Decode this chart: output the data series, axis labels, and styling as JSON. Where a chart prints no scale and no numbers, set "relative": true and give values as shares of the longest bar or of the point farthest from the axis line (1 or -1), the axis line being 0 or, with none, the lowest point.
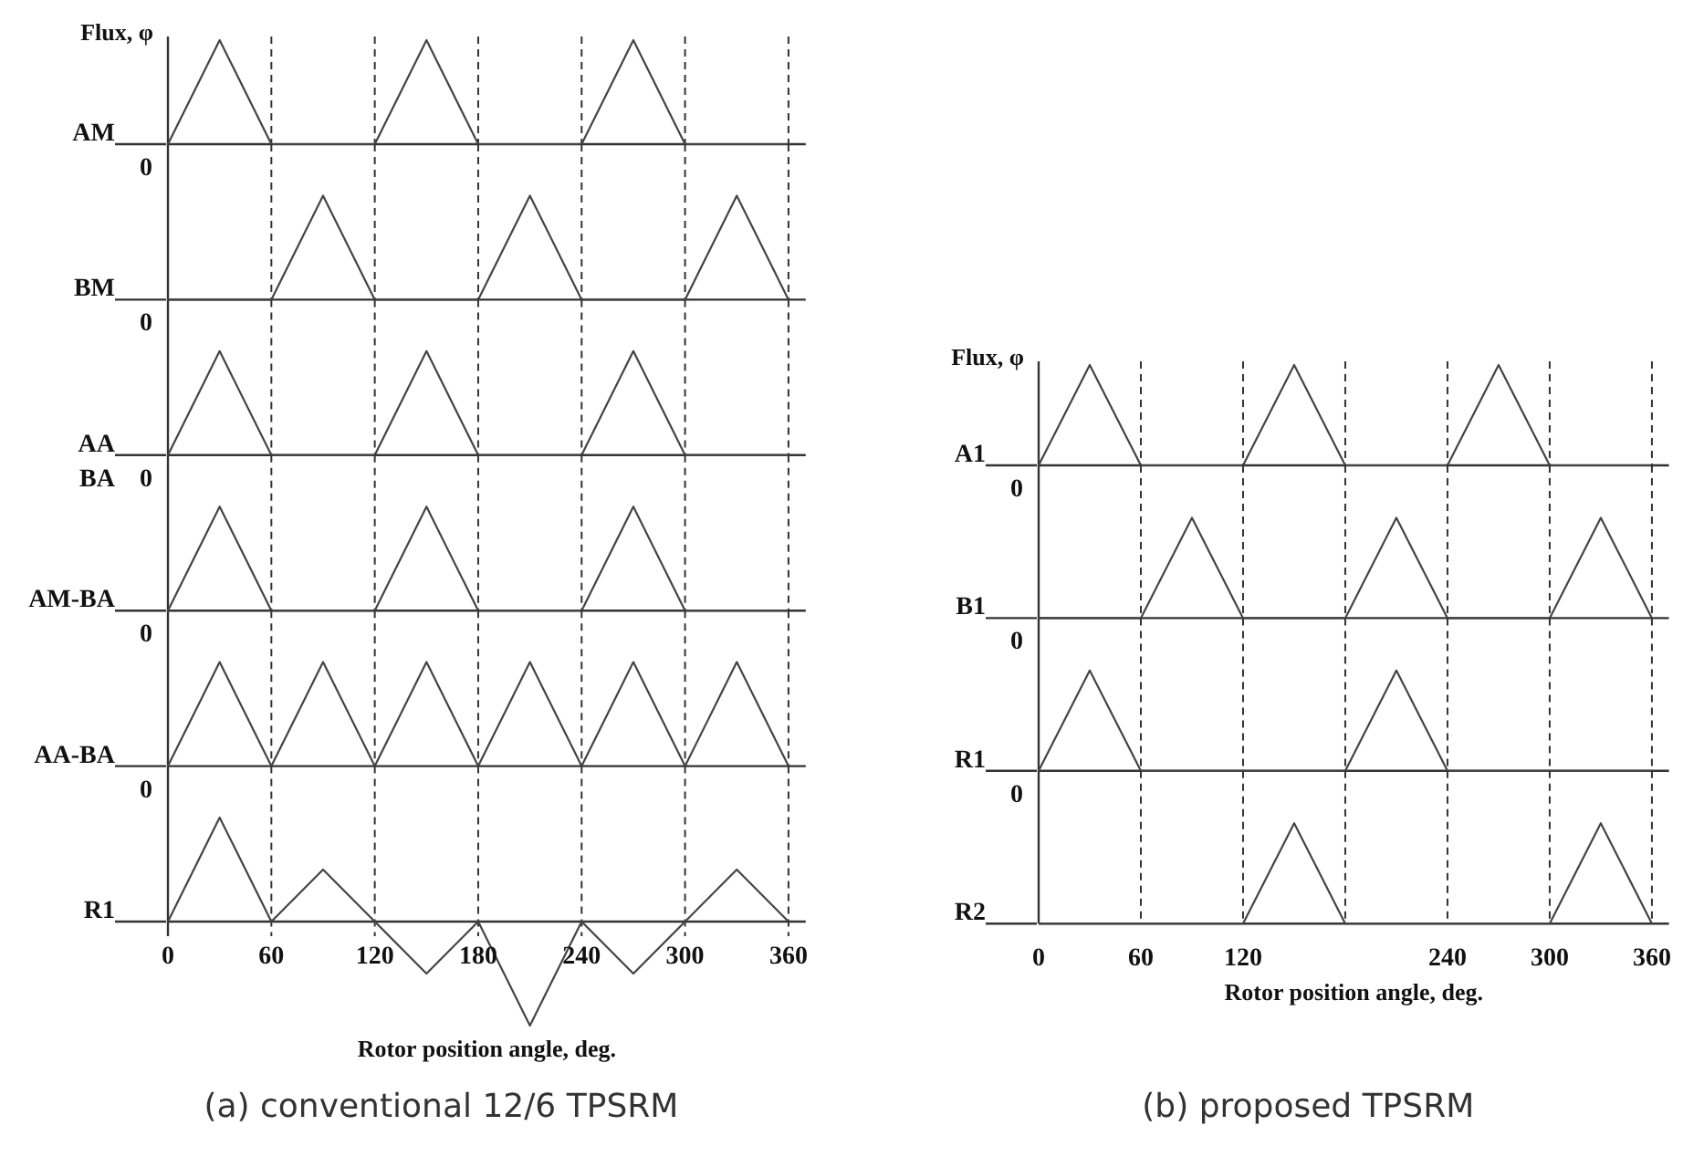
{
  "chart_data": [
    {
      "type": "line",
      "relative": true,
      "ylabel": "Flux, φ",
      "xlim": [
        0,
        370
      ],
      "tick_labels": false,
      "line_style": "solid",
      "series": [
        {
          "name": "AM",
          "color": "#444444",
          "x": [
            0,
            30,
            60,
            120,
            150,
            180,
            240,
            270,
            300,
            360
          ],
          "values": [
            0,
            1,
            0,
            0,
            1,
            0,
            0,
            1,
            0,
            0
          ]
        }
      ],
      "annotations": [
        "0"
      ],
      "ref_lines": [
        {
          "axis": "x",
          "value": 60,
          "line_style": "dashed"
        },
        {
          "axis": "x",
          "value": 120,
          "line_style": "dashed"
        },
        {
          "axis": "x",
          "value": 180,
          "line_style": "dashed"
        },
        {
          "axis": "x",
          "value": 240,
          "line_style": "dashed"
        },
        {
          "axis": "x",
          "value": 300,
          "line_style": "dashed"
        },
        {
          "axis": "x",
          "value": 360,
          "line_style": "dashed"
        }
      ]
    },
    {
      "type": "line",
      "relative": true,
      "xlim": [
        0,
        370
      ],
      "tick_labels": false,
      "line_style": "solid",
      "series": [
        {
          "name": "BM",
          "color": "#444444",
          "x": [
            0,
            60,
            90,
            120,
            180,
            210,
            240,
            300,
            330,
            360
          ],
          "values": [
            0,
            0,
            1,
            0,
            0,
            1,
            0,
            0,
            1,
            0
          ]
        }
      ],
      "annotations": [
        "0"
      ],
      "ref_lines": [
        {
          "axis": "x",
          "value": 60,
          "line_style": "dashed"
        },
        {
          "axis": "x",
          "value": 120,
          "line_style": "dashed"
        },
        {
          "axis": "x",
          "value": 180,
          "line_style": "dashed"
        },
        {
          "axis": "x",
          "value": 240,
          "line_style": "dashed"
        },
        {
          "axis": "x",
          "value": 300,
          "line_style": "dashed"
        },
        {
          "axis": "x",
          "value": 360,
          "line_style": "dashed"
        }
      ]
    },
    {
      "type": "line",
      "relative": true,
      "xlim": [
        0,
        370
      ],
      "tick_labels": false,
      "line_style": "solid",
      "series": [
        {
          "name": "AA",
          "color": "#444444",
          "x": [
            0,
            30,
            60,
            120,
            150,
            180,
            240,
            270,
            300,
            360
          ],
          "values": [
            0,
            1,
            0,
            0,
            1,
            0,
            0,
            1,
            0,
            0
          ]
        }
      ],
      "annotations": [
        "BA",
        "0"
      ],
      "ref_lines": [
        {
          "axis": "x",
          "value": 60,
          "line_style": "dashed"
        },
        {
          "axis": "x",
          "value": 120,
          "line_style": "dashed"
        },
        {
          "axis": "x",
          "value": 180,
          "line_style": "dashed"
        },
        {
          "axis": "x",
          "value": 240,
          "line_style": "dashed"
        },
        {
          "axis": "x",
          "value": 300,
          "line_style": "dashed"
        },
        {
          "axis": "x",
          "value": 360,
          "line_style": "dashed"
        }
      ]
    },
    {
      "type": "line",
      "relative": true,
      "xlim": [
        0,
        370
      ],
      "tick_labels": false,
      "line_style": "solid",
      "series": [
        {
          "name": "AM-BA",
          "color": "#444444",
          "x": [
            0,
            30,
            60,
            120,
            150,
            180,
            240,
            270,
            300,
            360
          ],
          "values": [
            0,
            1,
            0,
            0,
            1,
            0,
            0,
            1,
            0,
            0
          ]
        }
      ],
      "annotations": [
        "0"
      ],
      "ref_lines": [
        {
          "axis": "x",
          "value": 60,
          "line_style": "dashed"
        },
        {
          "axis": "x",
          "value": 120,
          "line_style": "dashed"
        },
        {
          "axis": "x",
          "value": 180,
          "line_style": "dashed"
        },
        {
          "axis": "x",
          "value": 240,
          "line_style": "dashed"
        },
        {
          "axis": "x",
          "value": 300,
          "line_style": "dashed"
        },
        {
          "axis": "x",
          "value": 360,
          "line_style": "dashed"
        }
      ]
    },
    {
      "type": "line",
      "relative": true,
      "xlim": [
        0,
        370
      ],
      "tick_labels": false,
      "line_style": "solid",
      "series": [
        {
          "name": "AA-BA",
          "color": "#444444",
          "x": [
            0,
            30,
            60,
            90,
            120,
            150,
            180,
            210,
            240,
            270,
            300,
            330,
            360
          ],
          "values": [
            0,
            1,
            0,
            1,
            0,
            1,
            0,
            1,
            0,
            1,
            0,
            1,
            0
          ]
        }
      ],
      "annotations": [
        "0"
      ],
      "ref_lines": [
        {
          "axis": "x",
          "value": 60,
          "line_style": "dashed"
        },
        {
          "axis": "x",
          "value": 120,
          "line_style": "dashed"
        },
        {
          "axis": "x",
          "value": 180,
          "line_style": "dashed"
        },
        {
          "axis": "x",
          "value": 240,
          "line_style": "dashed"
        },
        {
          "axis": "x",
          "value": 300,
          "line_style": "dashed"
        },
        {
          "axis": "x",
          "value": 360,
          "line_style": "dashed"
        }
      ]
    },
    {
      "type": "line",
      "relative": true,
      "title": "(a) conventional 12/6 TPSRM",
      "xlabel": "Rotor position angle, deg.",
      "xlim": [
        0,
        370
      ],
      "xticks": [
        0,
        60,
        120,
        180,
        240,
        300,
        360
      ],
      "tick_labels": "x",
      "line_style": "solid",
      "series": [
        {
          "name": "R1",
          "color": "#444444",
          "x": [
            0,
            30,
            60,
            90,
            120,
            150,
            180,
            210,
            240,
            270,
            300,
            330,
            360
          ],
          "values": [
            0,
            1,
            0,
            0.5,
            0,
            -0.5,
            0,
            -1,
            0,
            -0.5,
            0,
            0.5,
            0
          ]
        }
      ],
      "ref_lines": [
        {
          "axis": "x",
          "value": 60,
          "line_style": "dashed"
        },
        {
          "axis": "x",
          "value": 120,
          "line_style": "dashed"
        },
        {
          "axis": "x",
          "value": 180,
          "line_style": "dashed"
        },
        {
          "axis": "x",
          "value": 240,
          "line_style": "dashed"
        },
        {
          "axis": "x",
          "value": 300,
          "line_style": "dashed"
        },
        {
          "axis": "x",
          "value": 360,
          "line_style": "dashed"
        }
      ]
    },
    {
      "type": "line",
      "relative": true,
      "ylabel": "Flux, φ",
      "xlim": [
        0,
        370
      ],
      "tick_labels": false,
      "line_style": "solid",
      "series": [
        {
          "name": "A1",
          "color": "#444444",
          "x": [
            0,
            30,
            60,
            120,
            150,
            180,
            240,
            270,
            300,
            360
          ],
          "values": [
            0,
            1,
            0,
            0,
            1,
            0,
            0,
            1,
            0,
            0
          ]
        }
      ],
      "annotations": [
        "0"
      ],
      "ref_lines": [
        {
          "axis": "x",
          "value": 60,
          "line_style": "dashed"
        },
        {
          "axis": "x",
          "value": 120,
          "line_style": "dashed"
        },
        {
          "axis": "x",
          "value": 180,
          "line_style": "dashed"
        },
        {
          "axis": "x",
          "value": 240,
          "line_style": "dashed"
        },
        {
          "axis": "x",
          "value": 300,
          "line_style": "dashed"
        },
        {
          "axis": "x",
          "value": 360,
          "line_style": "dashed"
        }
      ]
    },
    {
      "type": "line",
      "relative": true,
      "xlim": [
        0,
        370
      ],
      "tick_labels": false,
      "line_style": "solid",
      "series": [
        {
          "name": "B1",
          "color": "#444444",
          "x": [
            0,
            60,
            90,
            120,
            180,
            210,
            240,
            300,
            330,
            360
          ],
          "values": [
            0,
            0,
            1,
            0,
            0,
            1,
            0,
            0,
            1,
            0
          ]
        }
      ],
      "annotations": [
        "0"
      ],
      "ref_lines": [
        {
          "axis": "x",
          "value": 60,
          "line_style": "dashed"
        },
        {
          "axis": "x",
          "value": 120,
          "line_style": "dashed"
        },
        {
          "axis": "x",
          "value": 180,
          "line_style": "dashed"
        },
        {
          "axis": "x",
          "value": 240,
          "line_style": "dashed"
        },
        {
          "axis": "x",
          "value": 300,
          "line_style": "dashed"
        },
        {
          "axis": "x",
          "value": 360,
          "line_style": "dashed"
        }
      ]
    },
    {
      "type": "line",
      "relative": true,
      "xlim": [
        0,
        370
      ],
      "tick_labels": false,
      "line_style": "solid",
      "series": [
        {
          "name": "R1",
          "color": "#444444",
          "x": [
            0,
            30,
            60,
            180,
            210,
            240,
            360
          ],
          "values": [
            0,
            1,
            0,
            0,
            1,
            0,
            0
          ]
        }
      ],
      "annotations": [
        "0"
      ],
      "ref_lines": [
        {
          "axis": "x",
          "value": 60,
          "line_style": "dashed"
        },
        {
          "axis": "x",
          "value": 120,
          "line_style": "dashed"
        },
        {
          "axis": "x",
          "value": 180,
          "line_style": "dashed"
        },
        {
          "axis": "x",
          "value": 240,
          "line_style": "dashed"
        },
        {
          "axis": "x",
          "value": 300,
          "line_style": "dashed"
        },
        {
          "axis": "x",
          "value": 360,
          "line_style": "dashed"
        }
      ]
    },
    {
      "type": "line",
      "relative": true,
      "title": "(b) proposed TPSRM",
      "xlabel": "Rotor position angle, deg.",
      "xlim": [
        0,
        370
      ],
      "xticks": [
        0,
        60,
        120,
        240,
        300,
        360
      ],
      "tick_labels": "x",
      "line_style": "solid",
      "series": [
        {
          "name": "R2",
          "color": "#444444",
          "x": [
            0,
            120,
            150,
            180,
            300,
            330,
            360
          ],
          "values": [
            0,
            0,
            1,
            0,
            0,
            1,
            0
          ]
        }
      ],
      "ref_lines": [
        {
          "axis": "x",
          "value": 60,
          "line_style": "dashed"
        },
        {
          "axis": "x",
          "value": 120,
          "line_style": "dashed"
        },
        {
          "axis": "x",
          "value": 180,
          "line_style": "dashed"
        },
        {
          "axis": "x",
          "value": 240,
          "line_style": "dashed"
        },
        {
          "axis": "x",
          "value": 300,
          "line_style": "dashed"
        },
        {
          "axis": "x",
          "value": 360,
          "line_style": "dashed"
        }
      ]
    }
  ]
}
